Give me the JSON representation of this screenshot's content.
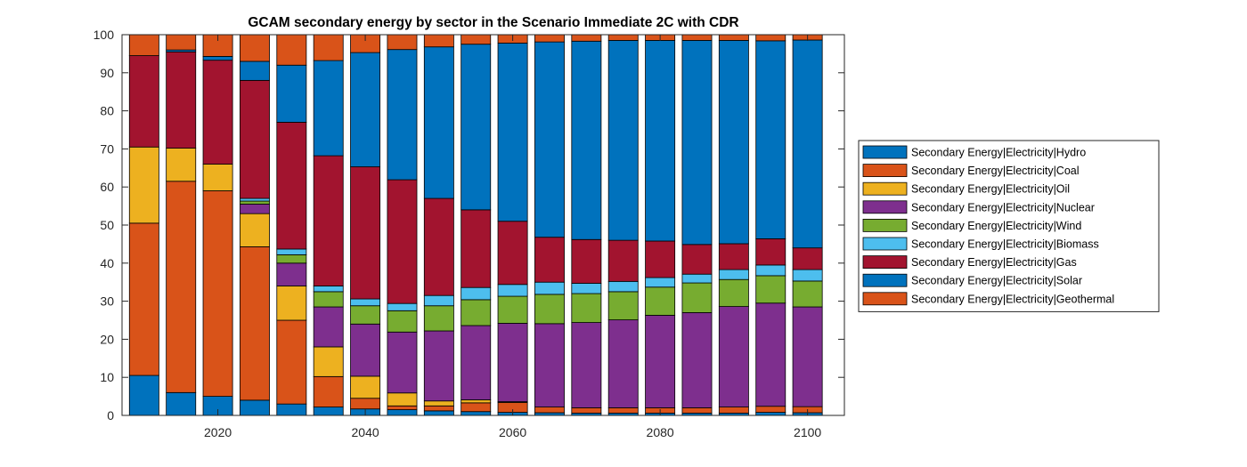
{
  "chart_data": {
    "type": "bar",
    "stacked": true,
    "percent": true,
    "title": "GCAM secondary energy by sector in the Scenario Immediate 2C with CDR",
    "xlabel": "",
    "ylabel": "",
    "ylim": [
      0,
      100
    ],
    "xlim": [
      2007,
      2105
    ],
    "yticks": [
      0,
      10,
      20,
      30,
      40,
      50,
      60,
      70,
      80,
      90,
      100
    ],
    "xticks": [
      2020,
      2040,
      2060,
      2080,
      2100
    ],
    "grid": false,
    "legend_position": "right-outside",
    "x": [
      2010,
      2015,
      2020,
      2025,
      2030,
      2035,
      2040,
      2045,
      2050,
      2055,
      2060,
      2065,
      2070,
      2075,
      2080,
      2085,
      2090,
      2095,
      2100
    ],
    "series": [
      {
        "name": "Secondary Energy|Electricity|Hydro",
        "color": "#0072BD",
        "values": [
          10.5,
          6,
          5,
          4,
          3,
          2.2,
          1.7,
          1.5,
          1.2,
          1.0,
          0.8,
          0.7,
          0.6,
          0.6,
          0.6,
          0.6,
          0.6,
          0.8,
          0.7
        ]
      },
      {
        "name": "Secondary Energy|Electricity|Coal",
        "color": "#D95319",
        "values": [
          40,
          55.5,
          54,
          40.3,
          22,
          8,
          2.8,
          1.0,
          1.3,
          2.3,
          2.6,
          1.5,
          1.4,
          1.4,
          1.4,
          1.4,
          1.6,
          1.6,
          1.6
        ]
      },
      {
        "name": "Secondary Energy|Electricity|Oil",
        "color": "#EDB120",
        "values": [
          20,
          8.7,
          7,
          8.7,
          9,
          7.8,
          5.8,
          3.4,
          1.3,
          0.8,
          0.2,
          0,
          0,
          0,
          0,
          0,
          0,
          0,
          0
        ]
      },
      {
        "name": "Secondary Energy|Electricity|Nuclear",
        "color": "#7E2F8E",
        "values": [
          0,
          0,
          0,
          2.5,
          6,
          10.5,
          13.7,
          16,
          18.4,
          19.5,
          20.6,
          21.9,
          22.4,
          23.1,
          24.3,
          25.0,
          26.4,
          27.1,
          26.2
        ]
      },
      {
        "name": "Secondary Energy|Electricity|Wind",
        "color": "#77AC30",
        "values": [
          0,
          0,
          0,
          0.8,
          2.2,
          4,
          4.8,
          5.6,
          6.6,
          6.8,
          7.1,
          7.7,
          7.6,
          7.4,
          7.4,
          7.8,
          7.1,
          7.2,
          6.8
        ]
      },
      {
        "name": "Secondary Energy|Electricity|Biomass",
        "color": "#4DBEEE",
        "values": [
          0,
          0,
          0,
          0.7,
          1.5,
          1.5,
          1.8,
          1.9,
          2.7,
          3.2,
          3.1,
          3.2,
          2.7,
          2.7,
          2.5,
          2.3,
          2.6,
          2.8,
          3.0
        ]
      },
      {
        "name": "Secondary Energy|Electricity|Gas",
        "color": "#A2142F",
        "values": [
          24,
          25.3,
          27.3,
          31,
          33.3,
          34.2,
          34.7,
          32.5,
          25.5,
          20.4,
          16.6,
          11.8,
          11.5,
          10.8,
          9.6,
          7.8,
          6.8,
          6.9,
          5.7
        ]
      },
      {
        "name": "Secondary Energy|Electricity|Solar",
        "color": "#0072BD",
        "values": [
          0,
          0.5,
          1,
          5,
          15,
          25,
          30,
          34.2,
          39.8,
          43.5,
          46.8,
          51.3,
          52.1,
          52.5,
          52.7,
          53.6,
          53.4,
          52.0,
          54.6
        ]
      },
      {
        "name": "Secondary Energy|Electricity|Geothermal",
        "color": "#D95319",
        "values": [
          5.5,
          4,
          5.7,
          7,
          8,
          6.8,
          4.7,
          3.9,
          3.2,
          2.5,
          2.2,
          1.9,
          1.7,
          1.5,
          1.5,
          1.5,
          1.5,
          1.6,
          1.4
        ]
      }
    ]
  }
}
